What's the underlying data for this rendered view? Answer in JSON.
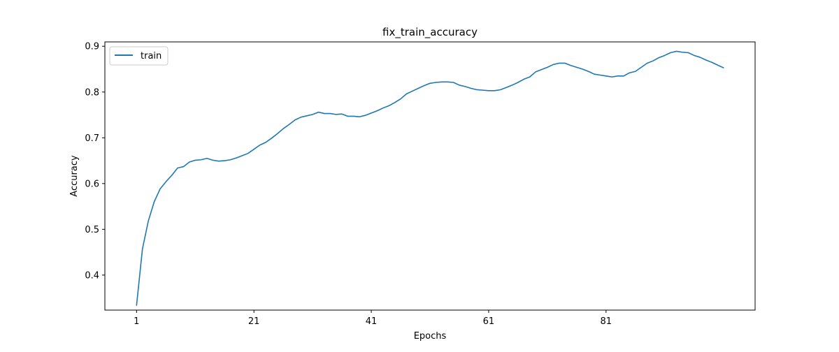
{
  "chart_data": {
    "type": "line",
    "title": "fix_train_accuracy",
    "xlabel": "Epochs",
    "ylabel": "Accuracy",
    "xlim": [
      -4.4,
      106.4
    ],
    "ylim": [
      0.3235,
      0.9095
    ],
    "x_ticks": [
      1,
      21,
      41,
      61,
      81
    ],
    "x_tick_labels": [
      "1",
      "21",
      "41",
      "61",
      "81"
    ],
    "y_ticks": [
      0.4,
      0.5,
      0.6,
      0.7,
      0.8,
      0.9
    ],
    "y_tick_labels": [
      "0.4",
      "0.5",
      "0.6",
      "0.7",
      "0.8",
      "0.9"
    ],
    "grid": false,
    "legend_position": "top-left",
    "series": [
      {
        "name": "train",
        "color": "#1f77b4",
        "x": [
          1,
          2,
          3,
          4,
          5,
          6,
          7,
          8,
          9,
          10,
          11,
          12,
          13,
          14,
          15,
          16,
          17,
          18,
          19,
          20,
          21,
          22,
          23,
          24,
          25,
          26,
          27,
          28,
          29,
          30,
          31,
          32,
          33,
          34,
          35,
          36,
          37,
          38,
          39,
          40,
          41,
          42,
          43,
          44,
          45,
          46,
          47,
          48,
          49,
          50,
          51,
          52,
          53,
          54,
          55,
          56,
          57,
          58,
          59,
          60,
          61,
          62,
          63,
          64,
          65,
          66,
          67,
          68,
          69,
          70,
          71,
          72,
          73,
          74,
          75,
          76,
          77,
          78,
          79,
          80,
          81,
          82,
          83,
          84,
          85,
          86,
          87,
          88,
          89,
          90,
          91,
          92,
          93,
          94,
          95,
          96,
          97,
          98,
          99,
          100,
          101
        ],
        "values": [
          0.334,
          0.457,
          0.518,
          0.56,
          0.588,
          0.604,
          0.618,
          0.634,
          0.637,
          0.647,
          0.651,
          0.652,
          0.655,
          0.651,
          0.649,
          0.65,
          0.652,
          0.656,
          0.661,
          0.666,
          0.675,
          0.684,
          0.69,
          0.699,
          0.709,
          0.72,
          0.729,
          0.739,
          0.745,
          0.748,
          0.751,
          0.756,
          0.753,
          0.753,
          0.751,
          0.752,
          0.747,
          0.747,
          0.746,
          0.749,
          0.754,
          0.759,
          0.765,
          0.77,
          0.777,
          0.785,
          0.796,
          0.802,
          0.808,
          0.814,
          0.819,
          0.821,
          0.822,
          0.822,
          0.821,
          0.815,
          0.812,
          0.808,
          0.805,
          0.804,
          0.803,
          0.803,
          0.805,
          0.81,
          0.815,
          0.821,
          0.828,
          0.833,
          0.844,
          0.849,
          0.854,
          0.86,
          0.863,
          0.863,
          0.858,
          0.854,
          0.85,
          0.845,
          0.839,
          0.837,
          0.835,
          0.833,
          0.835,
          0.835,
          0.842,
          0.845,
          0.854,
          0.863,
          0.868,
          0.875,
          0.88,
          0.886,
          0.889,
          0.887,
          0.886,
          0.88,
          0.876,
          0.87,
          0.865,
          0.859,
          0.853
        ]
      }
    ]
  }
}
